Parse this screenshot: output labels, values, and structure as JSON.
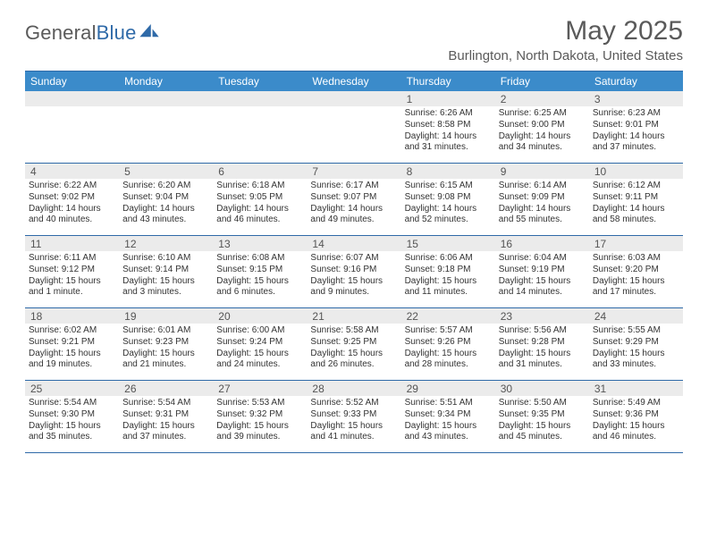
{
  "brand": {
    "part1": "General",
    "part2": "Blue"
  },
  "title": "May 2025",
  "subtitle": "Burlington, North Dakota, United States",
  "colors": {
    "header_bg": "#3b8bca",
    "border": "#2f6aa8",
    "daynum_bg": "#ebebeb",
    "text": "#333333",
    "muted": "#5a5a5a"
  },
  "days_of_week": [
    "Sunday",
    "Monday",
    "Tuesday",
    "Wednesday",
    "Thursday",
    "Friday",
    "Saturday"
  ],
  "weeks": [
    [
      {
        "day": "",
        "lines": []
      },
      {
        "day": "",
        "lines": []
      },
      {
        "day": "",
        "lines": []
      },
      {
        "day": "",
        "lines": []
      },
      {
        "day": "1",
        "lines": [
          "Sunrise: 6:26 AM",
          "Sunset: 8:58 PM",
          "Daylight: 14 hours",
          "and 31 minutes."
        ]
      },
      {
        "day": "2",
        "lines": [
          "Sunrise: 6:25 AM",
          "Sunset: 9:00 PM",
          "Daylight: 14 hours",
          "and 34 minutes."
        ]
      },
      {
        "day": "3",
        "lines": [
          "Sunrise: 6:23 AM",
          "Sunset: 9:01 PM",
          "Daylight: 14 hours",
          "and 37 minutes."
        ]
      }
    ],
    [
      {
        "day": "4",
        "lines": [
          "Sunrise: 6:22 AM",
          "Sunset: 9:02 PM",
          "Daylight: 14 hours",
          "and 40 minutes."
        ]
      },
      {
        "day": "5",
        "lines": [
          "Sunrise: 6:20 AM",
          "Sunset: 9:04 PM",
          "Daylight: 14 hours",
          "and 43 minutes."
        ]
      },
      {
        "day": "6",
        "lines": [
          "Sunrise: 6:18 AM",
          "Sunset: 9:05 PM",
          "Daylight: 14 hours",
          "and 46 minutes."
        ]
      },
      {
        "day": "7",
        "lines": [
          "Sunrise: 6:17 AM",
          "Sunset: 9:07 PM",
          "Daylight: 14 hours",
          "and 49 minutes."
        ]
      },
      {
        "day": "8",
        "lines": [
          "Sunrise: 6:15 AM",
          "Sunset: 9:08 PM",
          "Daylight: 14 hours",
          "and 52 minutes."
        ]
      },
      {
        "day": "9",
        "lines": [
          "Sunrise: 6:14 AM",
          "Sunset: 9:09 PM",
          "Daylight: 14 hours",
          "and 55 minutes."
        ]
      },
      {
        "day": "10",
        "lines": [
          "Sunrise: 6:12 AM",
          "Sunset: 9:11 PM",
          "Daylight: 14 hours",
          "and 58 minutes."
        ]
      }
    ],
    [
      {
        "day": "11",
        "lines": [
          "Sunrise: 6:11 AM",
          "Sunset: 9:12 PM",
          "Daylight: 15 hours",
          "and 1 minute."
        ]
      },
      {
        "day": "12",
        "lines": [
          "Sunrise: 6:10 AM",
          "Sunset: 9:14 PM",
          "Daylight: 15 hours",
          "and 3 minutes."
        ]
      },
      {
        "day": "13",
        "lines": [
          "Sunrise: 6:08 AM",
          "Sunset: 9:15 PM",
          "Daylight: 15 hours",
          "and 6 minutes."
        ]
      },
      {
        "day": "14",
        "lines": [
          "Sunrise: 6:07 AM",
          "Sunset: 9:16 PM",
          "Daylight: 15 hours",
          "and 9 minutes."
        ]
      },
      {
        "day": "15",
        "lines": [
          "Sunrise: 6:06 AM",
          "Sunset: 9:18 PM",
          "Daylight: 15 hours",
          "and 11 minutes."
        ]
      },
      {
        "day": "16",
        "lines": [
          "Sunrise: 6:04 AM",
          "Sunset: 9:19 PM",
          "Daylight: 15 hours",
          "and 14 minutes."
        ]
      },
      {
        "day": "17",
        "lines": [
          "Sunrise: 6:03 AM",
          "Sunset: 9:20 PM",
          "Daylight: 15 hours",
          "and 17 minutes."
        ]
      }
    ],
    [
      {
        "day": "18",
        "lines": [
          "Sunrise: 6:02 AM",
          "Sunset: 9:21 PM",
          "Daylight: 15 hours",
          "and 19 minutes."
        ]
      },
      {
        "day": "19",
        "lines": [
          "Sunrise: 6:01 AM",
          "Sunset: 9:23 PM",
          "Daylight: 15 hours",
          "and 21 minutes."
        ]
      },
      {
        "day": "20",
        "lines": [
          "Sunrise: 6:00 AM",
          "Sunset: 9:24 PM",
          "Daylight: 15 hours",
          "and 24 minutes."
        ]
      },
      {
        "day": "21",
        "lines": [
          "Sunrise: 5:58 AM",
          "Sunset: 9:25 PM",
          "Daylight: 15 hours",
          "and 26 minutes."
        ]
      },
      {
        "day": "22",
        "lines": [
          "Sunrise: 5:57 AM",
          "Sunset: 9:26 PM",
          "Daylight: 15 hours",
          "and 28 minutes."
        ]
      },
      {
        "day": "23",
        "lines": [
          "Sunrise: 5:56 AM",
          "Sunset: 9:28 PM",
          "Daylight: 15 hours",
          "and 31 minutes."
        ]
      },
      {
        "day": "24",
        "lines": [
          "Sunrise: 5:55 AM",
          "Sunset: 9:29 PM",
          "Daylight: 15 hours",
          "and 33 minutes."
        ]
      }
    ],
    [
      {
        "day": "25",
        "lines": [
          "Sunrise: 5:54 AM",
          "Sunset: 9:30 PM",
          "Daylight: 15 hours",
          "and 35 minutes."
        ]
      },
      {
        "day": "26",
        "lines": [
          "Sunrise: 5:54 AM",
          "Sunset: 9:31 PM",
          "Daylight: 15 hours",
          "and 37 minutes."
        ]
      },
      {
        "day": "27",
        "lines": [
          "Sunrise: 5:53 AM",
          "Sunset: 9:32 PM",
          "Daylight: 15 hours",
          "and 39 minutes."
        ]
      },
      {
        "day": "28",
        "lines": [
          "Sunrise: 5:52 AM",
          "Sunset: 9:33 PM",
          "Daylight: 15 hours",
          "and 41 minutes."
        ]
      },
      {
        "day": "29",
        "lines": [
          "Sunrise: 5:51 AM",
          "Sunset: 9:34 PM",
          "Daylight: 15 hours",
          "and 43 minutes."
        ]
      },
      {
        "day": "30",
        "lines": [
          "Sunrise: 5:50 AM",
          "Sunset: 9:35 PM",
          "Daylight: 15 hours",
          "and 45 minutes."
        ]
      },
      {
        "day": "31",
        "lines": [
          "Sunrise: 5:49 AM",
          "Sunset: 9:36 PM",
          "Daylight: 15 hours",
          "and 46 minutes."
        ]
      }
    ]
  ]
}
